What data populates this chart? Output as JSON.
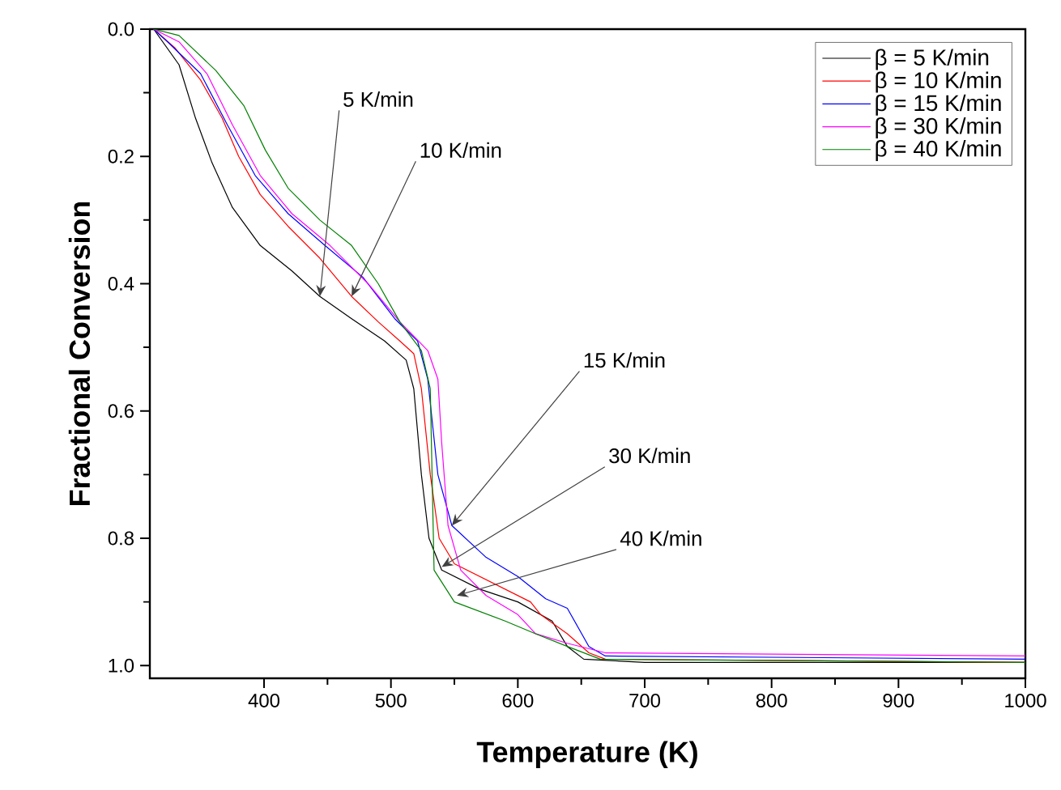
{
  "chart_data": {
    "type": "line",
    "xlabel": "Temperature (K)",
    "ylabel": "Fractional Conversion",
    "xlim": [
      310,
      1000
    ],
    "xticks": [
      400,
      500,
      600,
      700,
      800,
      900,
      1000
    ],
    "ylim": [
      1.02,
      0
    ],
    "yticks": [
      {
        "value": 0,
        "label": "0.0"
      },
      {
        "value": 0.2,
        "label": "0.2"
      },
      {
        "value": 0.4,
        "label": "0.4"
      },
      {
        "value": 0.6,
        "label": "0.6"
      },
      {
        "value": 0.8,
        "label": "0.8"
      },
      {
        "value": 1,
        "label": "1.0"
      }
    ],
    "legend": "top right",
    "grid": false,
    "marker": "none",
    "line_style": "solid",
    "series": [
      {
        "name": "β = 5 K/min",
        "color": "#000000",
        "x": [
          313,
          333,
          346,
          359,
          375,
          397,
          422,
          444,
          469,
          495,
          512,
          518,
          524,
          530,
          540,
          570,
          600,
          627,
          639,
          652,
          700,
          1000
        ],
        "values": [
          0,
          0.056,
          0.14,
          0.21,
          0.28,
          0.34,
          0.38,
          0.42,
          0.455,
          0.49,
          0.52,
          0.565,
          0.7,
          0.8,
          0.85,
          0.88,
          0.9,
          0.93,
          0.97,
          0.99,
          0.995,
          0.995
        ]
      },
      {
        "name": "β = 10 K/min",
        "color": "#ff0000",
        "x": [
          313,
          330,
          350,
          367,
          380,
          397,
          419,
          444,
          469,
          490,
          507,
          518,
          524,
          531,
          538,
          550,
          580,
          610,
          618,
          639,
          656,
          669,
          1000
        ],
        "values": [
          0,
          0.03,
          0.08,
          0.14,
          0.2,
          0.26,
          0.31,
          0.36,
          0.42,
          0.46,
          0.49,
          0.51,
          0.565,
          0.7,
          0.8,
          0.84,
          0.87,
          0.9,
          0.92,
          0.95,
          0.98,
          0.99,
          0.995
        ]
      },
      {
        "name": "β = 15 K/min",
        "color": "#0000ff",
        "x": [
          313,
          324,
          350,
          371,
          393,
          419,
          448,
          478,
          503,
          521,
          529,
          537,
          548,
          575,
          600,
          622,
          639,
          656,
          669,
          1000
        ],
        "values": [
          0,
          0.02,
          0.07,
          0.15,
          0.23,
          0.29,
          0.34,
          0.39,
          0.455,
          0.49,
          0.55,
          0.7,
          0.78,
          0.83,
          0.86,
          0.895,
          0.91,
          0.97,
          0.985,
          0.99
        ]
      },
      {
        "name": "β = 30 K/min",
        "color": "#ff00ff",
        "x": [
          313,
          333,
          355,
          375,
          397,
          422,
          452,
          482,
          507,
          529,
          537,
          540,
          545,
          555,
          575,
          600,
          614,
          639,
          669,
          1000
        ],
        "values": [
          0,
          0.02,
          0.07,
          0.15,
          0.23,
          0.29,
          0.34,
          0.4,
          0.46,
          0.505,
          0.55,
          0.65,
          0.78,
          0.85,
          0.89,
          0.92,
          0.95,
          0.965,
          0.98,
          0.985
        ]
      },
      {
        "name": "β = 40 K/min",
        "color": "#008000",
        "x": [
          313,
          333,
          362,
          384,
          401,
          419,
          444,
          469,
          490,
          507,
          524,
          531,
          534,
          550,
          590,
          614,
          639,
          665,
          1000
        ],
        "values": [
          0,
          0.01,
          0.065,
          0.12,
          0.19,
          0.25,
          0.3,
          0.34,
          0.4,
          0.46,
          0.505,
          0.565,
          0.85,
          0.9,
          0.93,
          0.95,
          0.97,
          0.99,
          0.995
        ]
      }
    ],
    "annotations": [
      {
        "text": "5 K/min",
        "x": 444,
        "y": 0.42
      },
      {
        "text": "10 K/min",
        "x": 469,
        "y": 0.42
      },
      {
        "text": "15 K/min",
        "x": 548,
        "y": 0.78
      },
      {
        "text": "30 K/min",
        "x": 540,
        "y": 0.845
      },
      {
        "text": "40 K/min",
        "x": 552,
        "y": 0.89
      }
    ]
  }
}
